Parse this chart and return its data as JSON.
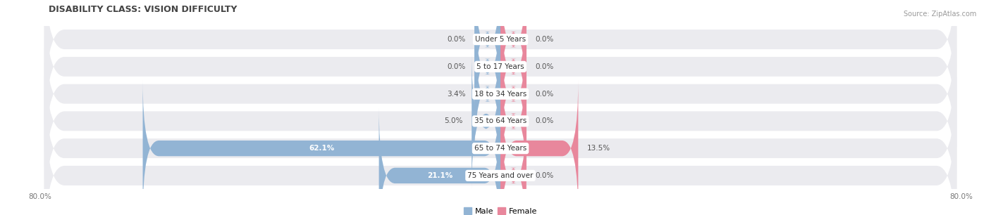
{
  "title": "DISABILITY CLASS: VISION DIFFICULTY",
  "source": "Source: ZipAtlas.com",
  "categories": [
    "Under 5 Years",
    "5 to 17 Years",
    "18 to 34 Years",
    "35 to 64 Years",
    "65 to 74 Years",
    "75 Years and over"
  ],
  "male_values": [
    0.0,
    0.0,
    3.4,
    5.0,
    62.1,
    21.1
  ],
  "female_values": [
    0.0,
    0.0,
    0.0,
    0.0,
    13.5,
    0.0
  ],
  "male_color": "#92b4d4",
  "female_color": "#e8879c",
  "row_bg_color": "#ebebef",
  "axis_min": -80.0,
  "axis_max": 80.0,
  "min_bar_width": 4.5,
  "label_fontsize": 7.5,
  "title_fontsize": 9,
  "source_fontsize": 7,
  "tick_fontsize": 7.5,
  "legend_fontsize": 8
}
